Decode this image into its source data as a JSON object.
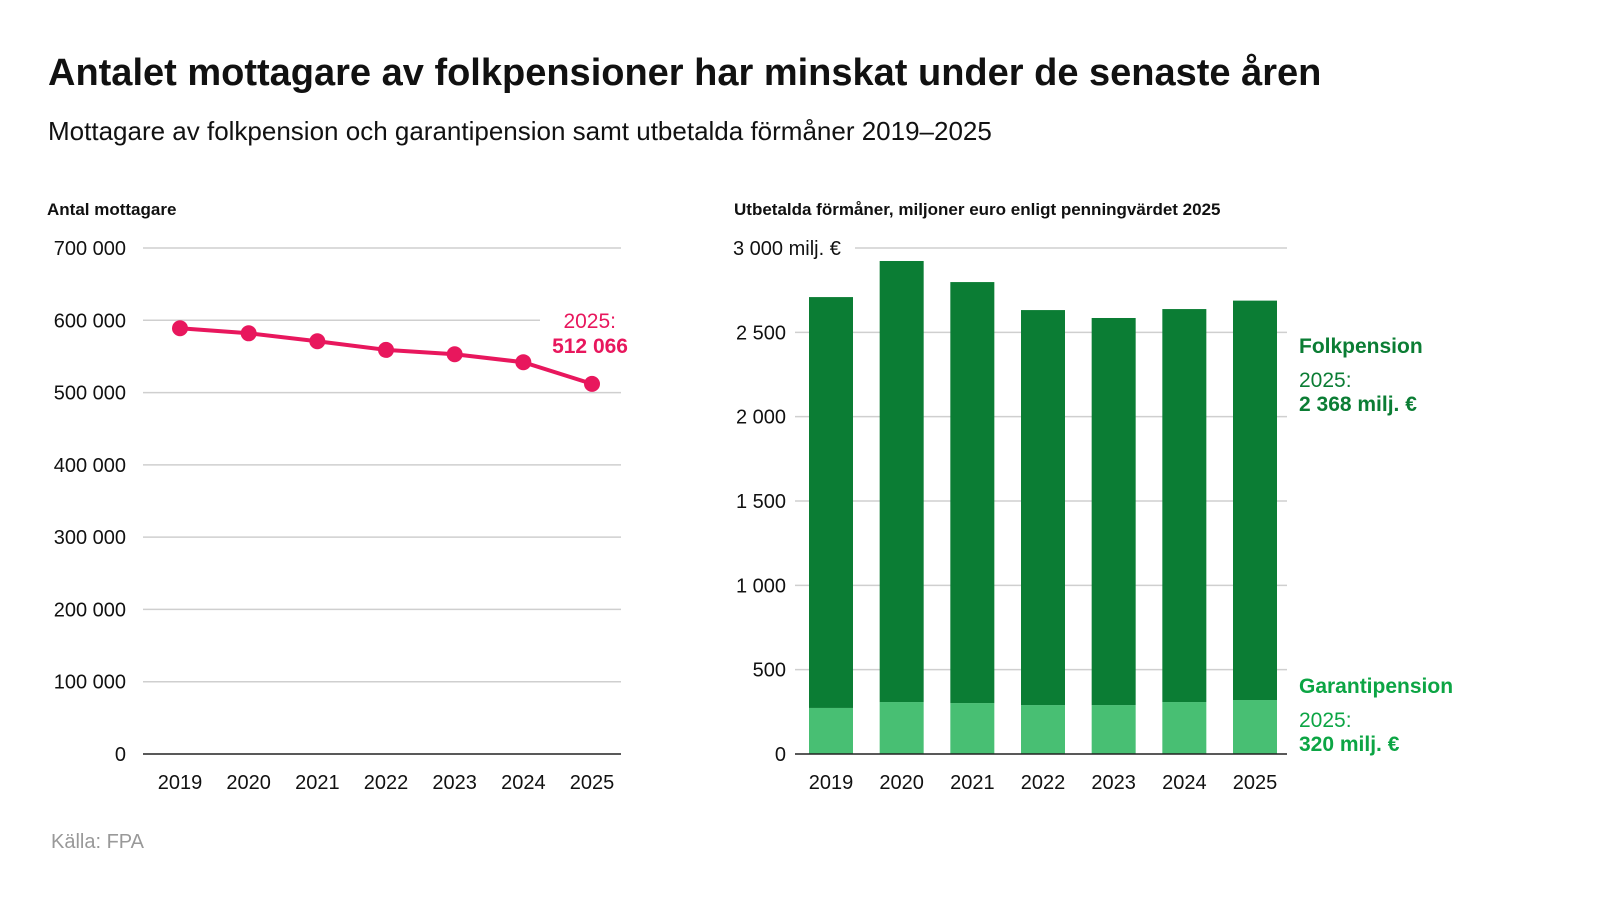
{
  "title": "Antalet mottagare av folkpensioner har minskat under de senaste åren",
  "subtitle": "Mottagare av folkpension och garantipension samt utbetalda förmåner 2019–2025",
  "source": "Källa: FPA",
  "chart_data": [
    {
      "type": "line",
      "title": "Antal mottagare",
      "categories": [
        "2019",
        "2020",
        "2021",
        "2022",
        "2023",
        "2024",
        "2025"
      ],
      "values": [
        589000,
        582000,
        571000,
        559000,
        553000,
        542000,
        512066
      ],
      "ylim": [
        0,
        700000
      ],
      "yticks": [
        "0",
        "100 000",
        "200 000",
        "300 000",
        "400 000",
        "500 000",
        "600 000",
        "700 000"
      ],
      "grid": true,
      "color": "#e8175d",
      "annotation": {
        "year": "2025:",
        "value": "512 066"
      }
    },
    {
      "type": "bar",
      "stacked": true,
      "title": "Utbetalda förmåner, miljoner euro enligt penningvärdet 2025",
      "categories": [
        "2019",
        "2020",
        "2021",
        "2022",
        "2023",
        "2024",
        "2025"
      ],
      "ylim": [
        0,
        3000
      ],
      "yticks": [
        "0",
        "500",
        "1 000",
        "1 500",
        "2 000",
        "2 500",
        "3 000 milj. €"
      ],
      "grid": true,
      "series": [
        {
          "name": "Garantipension",
          "values": [
            273,
            308,
            302,
            290,
            290,
            308,
            320
          ],
          "color": "#48bf73",
          "label_color": "#0ca544",
          "annotation": {
            "year": "2025:",
            "value": "320 milj. €"
          }
        },
        {
          "name": "Folkpension",
          "values": [
            2436,
            2615,
            2496,
            2342,
            2295,
            2330,
            2368
          ],
          "color": "#0b7d34",
          "label_color": "#0b7d34",
          "annotation": {
            "year": "2025:",
            "value": "2 368 milj. €"
          }
        }
      ]
    }
  ]
}
